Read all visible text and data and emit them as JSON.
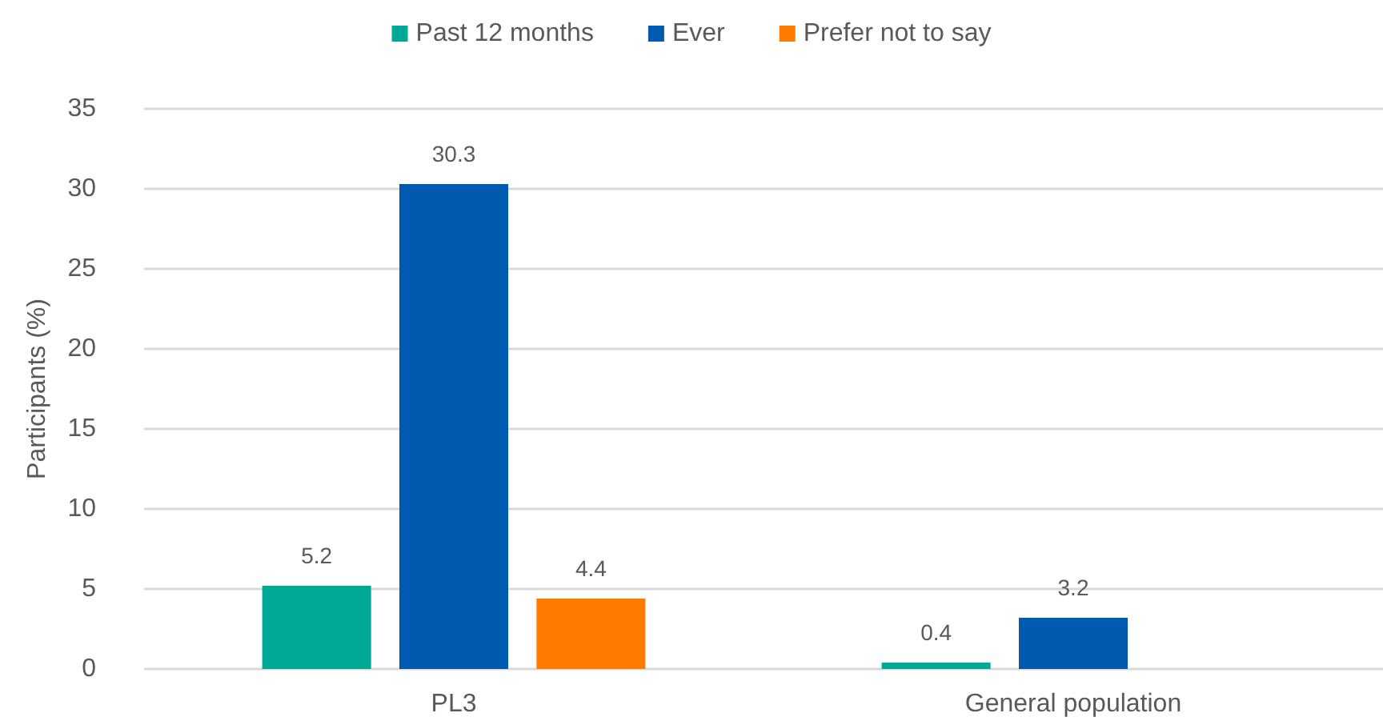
{
  "chart_data": {
    "type": "bar",
    "ylabel": "Participants (%)",
    "categories": [
      "PL3",
      "General population"
    ],
    "series": [
      {
        "name": "Past 12 months",
        "color": "#00a896",
        "values": [
          5.2,
          0.4
        ]
      },
      {
        "name": "Ever",
        "color": "#005bb0",
        "values": [
          30.3,
          3.2
        ]
      },
      {
        "name": "Prefer not to say",
        "color": "#ff7b00",
        "values": [
          4.4,
          null
        ]
      }
    ],
    "ylim": [
      0,
      35
    ],
    "yticks": [
      0,
      5,
      10,
      15,
      20,
      25,
      30,
      35
    ],
    "grid": "y",
    "legend": "top",
    "data_labels": true
  }
}
